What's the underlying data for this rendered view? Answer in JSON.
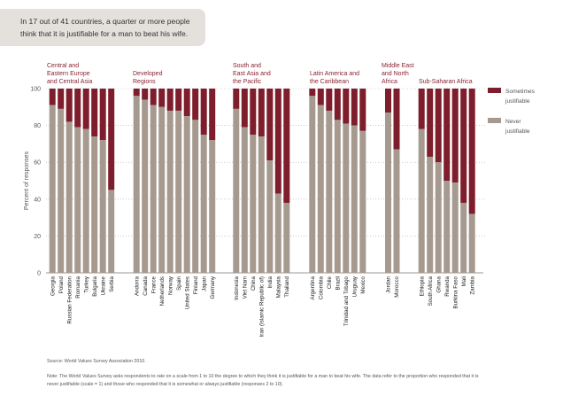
{
  "headline": {
    "line1": "In 17 out of 41 countries, a quarter or more people",
    "line2": "think that it is justifiable for a man to beat his wife."
  },
  "chart_data": {
    "type": "bar",
    "stacked": true,
    "ylabel": "Percent of responses",
    "ylim": [
      0,
      100
    ],
    "yticks": [
      0,
      20,
      40,
      60,
      80,
      100
    ],
    "grid": true,
    "legend_position": "right",
    "series": [
      {
        "name": "Sometimes justifiable",
        "color": "#7e1d2b"
      },
      {
        "name": "Never justifiable",
        "color": "#a69a90"
      }
    ],
    "legend": [
      {
        "line1": "Sometimes",
        "line2": "justifiable",
        "color": "#7e1d2b"
      },
      {
        "line1": "Never",
        "line2": "justifiable",
        "color": "#a69a90"
      }
    ],
    "groups": [
      {
        "label": [
          "Central and",
          "Eastern Europe",
          "and Central Asia"
        ],
        "countries": [
          "Georgia",
          "Poland",
          "Russian Federation",
          "Romania",
          "Turkey",
          "Bulgaria",
          "Ukraine",
          "Serbia"
        ],
        "never": [
          91,
          89,
          82,
          79,
          78,
          74,
          72,
          45
        ]
      },
      {
        "label": [
          "Developed",
          "Regions"
        ],
        "countries": [
          "Andorra",
          "Canada",
          "France",
          "Netherlands",
          "Norway",
          "Spain",
          "United States",
          "Finland",
          "Japan",
          "Germany"
        ],
        "never": [
          96,
          94,
          91,
          90,
          88,
          88,
          85,
          83,
          75,
          72
        ]
      },
      {
        "label": [
          "South and",
          "East Asia and",
          "the Pacific"
        ],
        "countries": [
          "Indonesia",
          "Viet Nam",
          "China",
          "Iran (Islamic Republic of)",
          "India",
          "Malaysia",
          "Thailand"
        ],
        "never": [
          89,
          79,
          75,
          74,
          61,
          43,
          38
        ]
      },
      {
        "label": [
          "Latin America and",
          "the Caribbean"
        ],
        "countries": [
          "Argentina",
          "Colombia",
          "Chile",
          "Brazil",
          "Trinidad and Tobago",
          "Uruguay",
          "Mexico"
        ],
        "never": [
          96,
          91,
          88,
          83,
          81,
          80,
          77
        ]
      },
      {
        "label": [
          "Middle East",
          "and North",
          "Africa"
        ],
        "countries": [
          "Jordan",
          "Morocco"
        ],
        "never": [
          87,
          67
        ]
      },
      {
        "label": [
          "Sub-Saharan Africa"
        ],
        "countries": [
          "Ethiopia",
          "South Africa",
          "Ghana",
          "Rwanda",
          "Burkina Faso",
          "Mali",
          "Zambia"
        ],
        "never": [
          78,
          63,
          60,
          50,
          49,
          38,
          32
        ]
      }
    ]
  },
  "footer": {
    "source": "Source: World Values Survey Association 2010.",
    "note1": "Note: The World Values Survey asks respondents to rate on a scale from 1 to 10 the degree to which they think it is justifiable for a man to beat his wife. The data refer to the proportion who responded that it is",
    "note2": "never justifiable (scale = 1) and those who responded that it is somewhat or always justifiable (responses 2 to 10)."
  }
}
